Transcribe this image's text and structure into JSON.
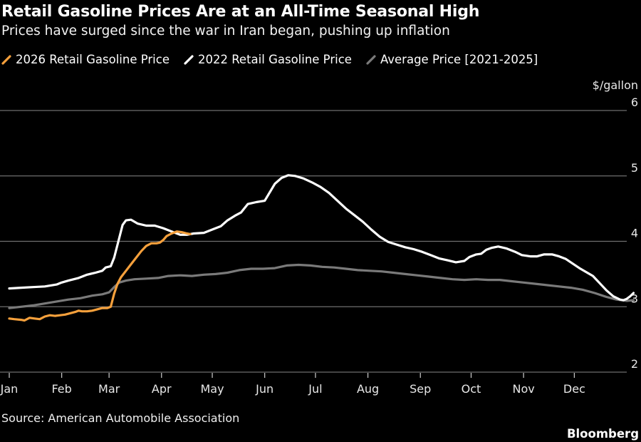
{
  "header": {
    "title": "Retail Gasoline Prices Are at an All-Time Seasonal High",
    "subtitle": "Prices have surged since the war in Iran began, pushing up inflation"
  },
  "footer": {
    "source": "Source: American Automobile Association",
    "brand": "Bloomberg"
  },
  "colors": {
    "background": "#000000",
    "series_2026": "#f5a03c",
    "series_2022": "#ffffff",
    "series_average": "#7a7a7a",
    "gridline": "#6e6e6e"
  },
  "chart_data": {
    "type": "line",
    "title": "Retail Gasoline Prices Are at an All-Time Seasonal High",
    "subtitle": "Prices have surged since the war in Iran began, pushing up inflation",
    "xlabel": "",
    "ylabel": "$/gallon",
    "y_unit_label": "$/gallon",
    "ylim": [
      2,
      6
    ],
    "yticks": [
      2,
      3,
      4,
      5,
      6
    ],
    "xlim_day_of_year": [
      1,
      366
    ],
    "x_ticks": [
      {
        "label": "Jan",
        "day": 1
      },
      {
        "label": "Feb",
        "day": 32
      },
      {
        "label": "Mar",
        "day": 60
      },
      {
        "label": "Apr",
        "day": 91
      },
      {
        "label": "May",
        "day": 121
      },
      {
        "label": "Jun",
        "day": 152
      },
      {
        "label": "Jul",
        "day": 182
      },
      {
        "label": "Aug",
        "day": 213
      },
      {
        "label": "Sep",
        "day": 244
      },
      {
        "label": "Oct",
        "day": 274
      },
      {
        "label": "Nov",
        "day": 305
      },
      {
        "label": "Dec",
        "day": 335
      }
    ],
    "grid": true,
    "y_axis_position": "right",
    "legend_position": "top-left",
    "series": [
      {
        "name": "2026 Retail Gasoline Price",
        "color": "#f5a03c",
        "points": [
          [
            1,
            2.82
          ],
          [
            4,
            2.81
          ],
          [
            8,
            2.8
          ],
          [
            10,
            2.79
          ],
          [
            13,
            2.83
          ],
          [
            16,
            2.82
          ],
          [
            19,
            2.81
          ],
          [
            22,
            2.85
          ],
          [
            25,
            2.87
          ],
          [
            28,
            2.86
          ],
          [
            31,
            2.87
          ],
          [
            34,
            2.88
          ],
          [
            37,
            2.9
          ],
          [
            40,
            2.92
          ],
          [
            42,
            2.94
          ],
          [
            44,
            2.93
          ],
          [
            47,
            2.93
          ],
          [
            50,
            2.94
          ],
          [
            53,
            2.96
          ],
          [
            56,
            2.98
          ],
          [
            59,
            2.98
          ],
          [
            61,
            3.0
          ],
          [
            63,
            3.2
          ],
          [
            65,
            3.35
          ],
          [
            67,
            3.45
          ],
          [
            70,
            3.55
          ],
          [
            73,
            3.65
          ],
          [
            76,
            3.75
          ],
          [
            79,
            3.85
          ],
          [
            82,
            3.93
          ],
          [
            85,
            3.97
          ],
          [
            88,
            3.97
          ],
          [
            90,
            3.98
          ],
          [
            92,
            4.02
          ],
          [
            94,
            4.08
          ],
          [
            97,
            4.12
          ],
          [
            100,
            4.15
          ],
          [
            103,
            4.14
          ],
          [
            106,
            4.12
          ],
          [
            108,
            4.11
          ]
        ]
      },
      {
        "name": "2022 Retail Gasoline Price",
        "color": "#ffffff",
        "points": [
          [
            1,
            3.28
          ],
          [
            8,
            3.29
          ],
          [
            15,
            3.3
          ],
          [
            22,
            3.31
          ],
          [
            29,
            3.34
          ],
          [
            32,
            3.37
          ],
          [
            36,
            3.4
          ],
          [
            42,
            3.44
          ],
          [
            47,
            3.49
          ],
          [
            52,
            3.52
          ],
          [
            56,
            3.55
          ],
          [
            58,
            3.6
          ],
          [
            61,
            3.62
          ],
          [
            63,
            3.75
          ],
          [
            66,
            4.05
          ],
          [
            68,
            4.25
          ],
          [
            70,
            4.32
          ],
          [
            73,
            4.33
          ],
          [
            77,
            4.27
          ],
          [
            82,
            4.24
          ],
          [
            87,
            4.24
          ],
          [
            92,
            4.2
          ],
          [
            97,
            4.15
          ],
          [
            102,
            4.1
          ],
          [
            106,
            4.1
          ],
          [
            110,
            4.12
          ],
          [
            116,
            4.13
          ],
          [
            121,
            4.18
          ],
          [
            126,
            4.23
          ],
          [
            130,
            4.32
          ],
          [
            135,
            4.4
          ],
          [
            138,
            4.44
          ],
          [
            142,
            4.57
          ],
          [
            147,
            4.6
          ],
          [
            152,
            4.62
          ],
          [
            155,
            4.75
          ],
          [
            158,
            4.88
          ],
          [
            162,
            4.97
          ],
          [
            166,
            5.01
          ],
          [
            170,
            5.0
          ],
          [
            175,
            4.96
          ],
          [
            180,
            4.9
          ],
          [
            185,
            4.83
          ],
          [
            190,
            4.74
          ],
          [
            195,
            4.62
          ],
          [
            200,
            4.5
          ],
          [
            205,
            4.4
          ],
          [
            210,
            4.3
          ],
          [
            215,
            4.18
          ],
          [
            220,
            4.07
          ],
          [
            225,
            3.99
          ],
          [
            230,
            3.95
          ],
          [
            235,
            3.91
          ],
          [
            240,
            3.88
          ],
          [
            245,
            3.84
          ],
          [
            250,
            3.79
          ],
          [
            255,
            3.74
          ],
          [
            260,
            3.71
          ],
          [
            265,
            3.68
          ],
          [
            270,
            3.7
          ],
          [
            273,
            3.76
          ],
          [
            277,
            3.8
          ],
          [
            280,
            3.81
          ],
          [
            283,
            3.87
          ],
          [
            286,
            3.9
          ],
          [
            290,
            3.92
          ],
          [
            295,
            3.89
          ],
          [
            300,
            3.84
          ],
          [
            304,
            3.79
          ],
          [
            309,
            3.77
          ],
          [
            313,
            3.77
          ],
          [
            317,
            3.8
          ],
          [
            322,
            3.8
          ],
          [
            326,
            3.77
          ],
          [
            330,
            3.73
          ],
          [
            334,
            3.66
          ],
          [
            338,
            3.59
          ],
          [
            342,
            3.53
          ],
          [
            346,
            3.47
          ],
          [
            350,
            3.36
          ],
          [
            354,
            3.25
          ],
          [
            358,
            3.16
          ],
          [
            362,
            3.11
          ],
          [
            364,
            3.1
          ],
          [
            366,
            3.12
          ],
          [
            368,
            3.16
          ],
          [
            370,
            3.21
          ]
        ]
      },
      {
        "name": "Average Price [2021-2025]",
        "color": "#7a7a7a",
        "points": [
          [
            1,
            2.98
          ],
          [
            8,
            3.0
          ],
          [
            15,
            3.02
          ],
          [
            22,
            3.05
          ],
          [
            29,
            3.08
          ],
          [
            36,
            3.11
          ],
          [
            43,
            3.13
          ],
          [
            50,
            3.17
          ],
          [
            56,
            3.19
          ],
          [
            60,
            3.22
          ],
          [
            63,
            3.3
          ],
          [
            66,
            3.37
          ],
          [
            70,
            3.4
          ],
          [
            75,
            3.42
          ],
          [
            82,
            3.43
          ],
          [
            89,
            3.44
          ],
          [
            95,
            3.47
          ],
          [
            102,
            3.48
          ],
          [
            109,
            3.47
          ],
          [
            116,
            3.49
          ],
          [
            123,
            3.5
          ],
          [
            130,
            3.52
          ],
          [
            137,
            3.56
          ],
          [
            144,
            3.58
          ],
          [
            151,
            3.58
          ],
          [
            158,
            3.59
          ],
          [
            165,
            3.63
          ],
          [
            172,
            3.64
          ],
          [
            179,
            3.63
          ],
          [
            186,
            3.61
          ],
          [
            193,
            3.6
          ],
          [
            200,
            3.58
          ],
          [
            207,
            3.56
          ],
          [
            214,
            3.55
          ],
          [
            221,
            3.54
          ],
          [
            228,
            3.52
          ],
          [
            235,
            3.5
          ],
          [
            242,
            3.48
          ],
          [
            249,
            3.46
          ],
          [
            256,
            3.44
          ],
          [
            263,
            3.42
          ],
          [
            270,
            3.41
          ],
          [
            277,
            3.42
          ],
          [
            284,
            3.41
          ],
          [
            291,
            3.41
          ],
          [
            298,
            3.39
          ],
          [
            305,
            3.37
          ],
          [
            312,
            3.35
          ],
          [
            319,
            3.33
          ],
          [
            326,
            3.31
          ],
          [
            333,
            3.29
          ],
          [
            340,
            3.26
          ],
          [
            347,
            3.21
          ],
          [
            354,
            3.15
          ],
          [
            360,
            3.11
          ],
          [
            366,
            3.09
          ],
          [
            370,
            3.1
          ]
        ]
      }
    ]
  }
}
